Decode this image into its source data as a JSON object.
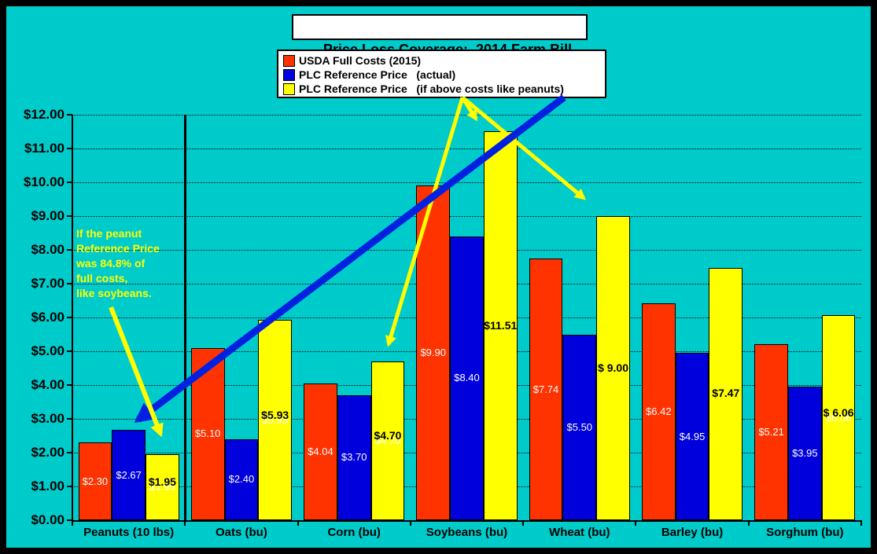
{
  "title": "Price Loss Coverage:  2014 Farm Bill",
  "colors": {
    "background": "#00CBCB",
    "frame": "#000000",
    "red": "#FF3300",
    "blue": "#0000DC",
    "yellow": "#FFFF00",
    "arrow_blue": "#0022E0",
    "label_white": "#FFFFFF",
    "label_black": "#000000"
  },
  "chart_data": {
    "type": "bar",
    "title": "Price Loss Coverage:  2014 Farm Bill",
    "xlabel": "",
    "ylabel": "",
    "ylim": [
      0,
      12
    ],
    "ytick_step": 1,
    "ytick_labels": [
      "$0.00",
      "$1.00",
      "$2.00",
      "$3.00",
      "$4.00",
      "$5.00",
      "$6.00",
      "$7.00",
      "$8.00",
      "$9.00",
      "$10.00",
      "$11.00",
      "$12.00"
    ],
    "grid": "horizontal-dotted",
    "legend_position": "top-center",
    "categories": [
      "Peanuts (10 lbs)",
      "Oats (bu)",
      "Corn (bu)",
      "Soybeans (bu)",
      "Wheat (bu)",
      "Barley (bu)",
      "Sorghum (bu)"
    ],
    "series": [
      {
        "name": "USDA Full Costs (2015)",
        "color_key": "red",
        "label_color_key": "label_white",
        "values": [
          2.3,
          5.1,
          4.04,
          9.9,
          7.74,
          6.42,
          5.21
        ],
        "labels": [
          "$2.30",
          "$5.10",
          "$4.04",
          "$9.90",
          "$7.74",
          "$6.42",
          "$5.21"
        ]
      },
      {
        "name": "PLC Reference Price   (actual)",
        "color_key": "blue",
        "label_color_key": "label_white",
        "values": [
          2.67,
          2.4,
          3.7,
          8.4,
          5.5,
          4.95,
          3.95
        ],
        "labels": [
          "$2.67",
          "$2.40",
          "$3.70",
          "$8.40",
          "$5.50",
          "$4.95",
          "$3.95"
        ]
      },
      {
        "name": "PLC Reference Price   (if above costs like peanuts)",
        "color_key": "yellow",
        "label_color_key": "label_black",
        "values": [
          1.95,
          5.93,
          4.7,
          11.51,
          9.0,
          7.47,
          6.06
        ],
        "labels": [
          "$1.95",
          "$5.93",
          "$4.70",
          "$11.51",
          "$ 9.00",
          "$7.47",
          "$ 6.06"
        ],
        "label_shadow": [
          true,
          true,
          true,
          false,
          false,
          false,
          true
        ]
      }
    ]
  },
  "annotations": {
    "note": {
      "color_key": "yellow",
      "lines": [
        "If the peanut",
        "Reference Price",
        "was 84.8% of",
        "full costs,",
        "like soybeans."
      ]
    },
    "arrows": [
      {
        "name": "legend-arrow-to-corn-yellow-bar",
        "color_key": "yellow",
        "stroke": 5,
        "from": [
          580,
          116
        ],
        "to": [
          486,
          430
        ]
      },
      {
        "name": "legend-arrow-to-soybeans-yellow-bar",
        "color_key": "yellow",
        "stroke": 5,
        "from": [
          580,
          116
        ],
        "to": [
          597,
          143
        ]
      },
      {
        "name": "legend-arrow-to-wheat-yellow-bar",
        "color_key": "yellow",
        "stroke": 5,
        "from": [
          580,
          116
        ],
        "to": [
          734,
          244
        ]
      },
      {
        "name": "blue-arrow-to-peanuts-actual-bar",
        "color_key": "arrow_blue",
        "stroke": 9,
        "from": [
          709,
          116
        ],
        "to": [
          168,
          526
        ]
      },
      {
        "name": "note-arrow-to-peanuts-yellow-bar",
        "color_key": "yellow",
        "stroke": 6,
        "from": [
          133,
          383
        ],
        "to": [
          196,
          544
        ]
      }
    ]
  }
}
